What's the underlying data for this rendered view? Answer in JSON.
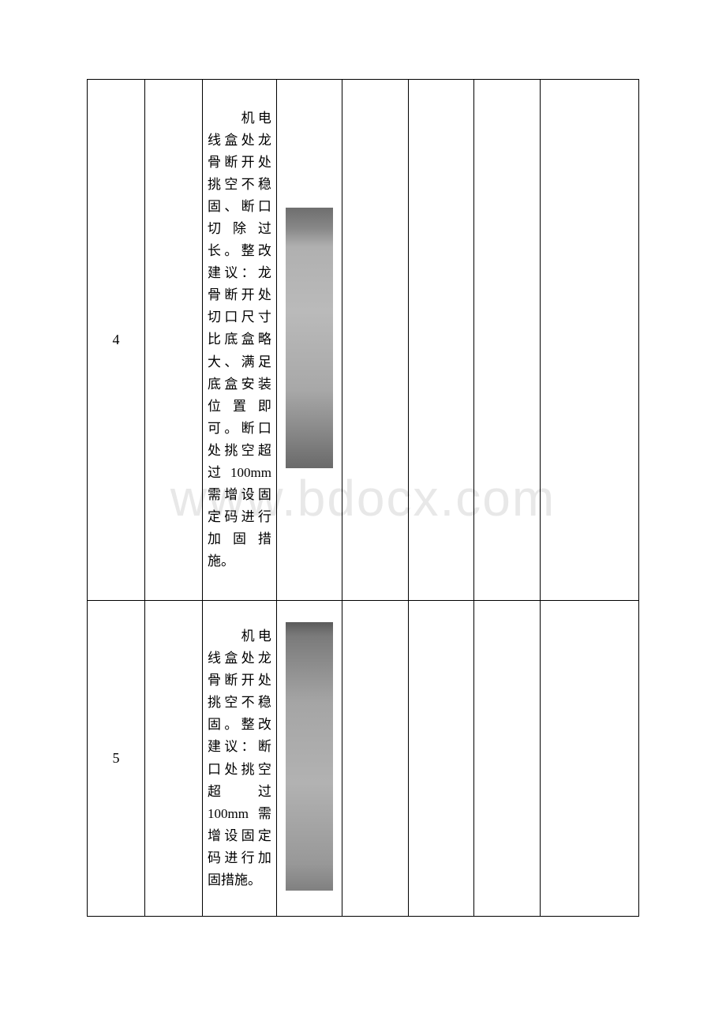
{
  "watermark": "www.bdocx.com",
  "table": {
    "rows": [
      {
        "index": "4",
        "description": "　　机电线盒处龙骨断开处挑空不稳固、断口切除过长。整改建议：龙骨断开处切口尺寸比底盒略大、满足底盒安装位置即可。断口处挑空超过100mm需增设固定码进行加固措施。",
        "image_bg": "linear-gradient(180deg, #6e6e6e 0%, #888888 8%, #b0b0b0 15%, #bababa 40%, #a8a8a8 70%, #8a8a8a 85%, #6a6a6a 100%)"
      },
      {
        "index": "5",
        "description": "　　机电线盒处龙骨断开处挑空不稳固。整改建议：断口处挑空超过100mm需增设固定码进行加固措施。",
        "image_bg": "linear-gradient(180deg, #5a5a5a 0%, #7a7a7a 5%, #a5a5a5 30%, #b2b2b2 60%, #989898 90%, #808080 100%)"
      }
    ],
    "columns": {
      "widths": [
        70,
        70,
        90,
        80,
        80,
        80,
        80,
        120
      ],
      "border_color": "#000000"
    },
    "typography": {
      "body_font": "SimSun",
      "body_fontsize": 17,
      "index_font": "Times New Roman",
      "index_fontsize": 18,
      "line_height": 1.65
    },
    "colors": {
      "background": "#ffffff",
      "text": "#000000",
      "watermark": "#e8e8e8",
      "border": "#000000"
    }
  }
}
